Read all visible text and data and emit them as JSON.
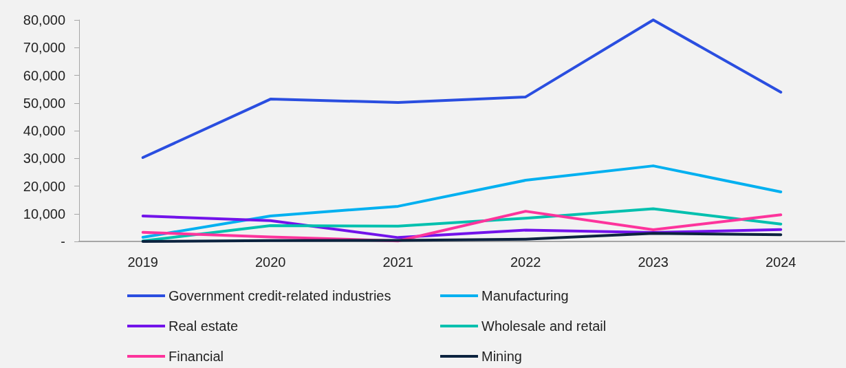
{
  "chart_data": {
    "type": "line",
    "categories": [
      "2019",
      "2020",
      "2021",
      "2022",
      "2023",
      "2024"
    ],
    "series": [
      {
        "name": "Government credit-related industries",
        "color": "#2a4ee0",
        "values": [
          30300,
          51400,
          50200,
          52200,
          80000,
          53900
        ]
      },
      {
        "name": "Manufacturing",
        "color": "#00b0f0",
        "values": [
          1500,
          9200,
          12700,
          22100,
          27300,
          17900
        ]
      },
      {
        "name": "Real estate",
        "color": "#7213ea",
        "values": [
          9200,
          7500,
          1400,
          4100,
          3200,
          4300
        ]
      },
      {
        "name": "Wholesale and retail",
        "color": "#00c0ae",
        "values": [
          200,
          5700,
          5500,
          8400,
          11800,
          6300
        ]
      },
      {
        "name": "Financial",
        "color": "#fd349c",
        "values": [
          3300,
          1600,
          200,
          10900,
          4200,
          9600
        ]
      },
      {
        "name": "Mining",
        "color": "#0c233f",
        "values": [
          0,
          300,
          400,
          800,
          2900,
          2400
        ]
      }
    ],
    "ylim": [
      0,
      80000
    ],
    "yticks": [
      {
        "value": 0,
        "label": "-"
      },
      {
        "value": 10000,
        "label": "10,000"
      },
      {
        "value": 20000,
        "label": "20,000"
      },
      {
        "value": 30000,
        "label": "30,000"
      },
      {
        "value": 40000,
        "label": "40,000"
      },
      {
        "value": 50000,
        "label": "50,000"
      },
      {
        "value": 60000,
        "label": "60,000"
      },
      {
        "value": 70000,
        "label": "70,000"
      },
      {
        "value": 80000,
        "label": "80,000"
      }
    ],
    "grid": false,
    "legend": "bottom",
    "marker": "none",
    "line_style": "solid"
  }
}
